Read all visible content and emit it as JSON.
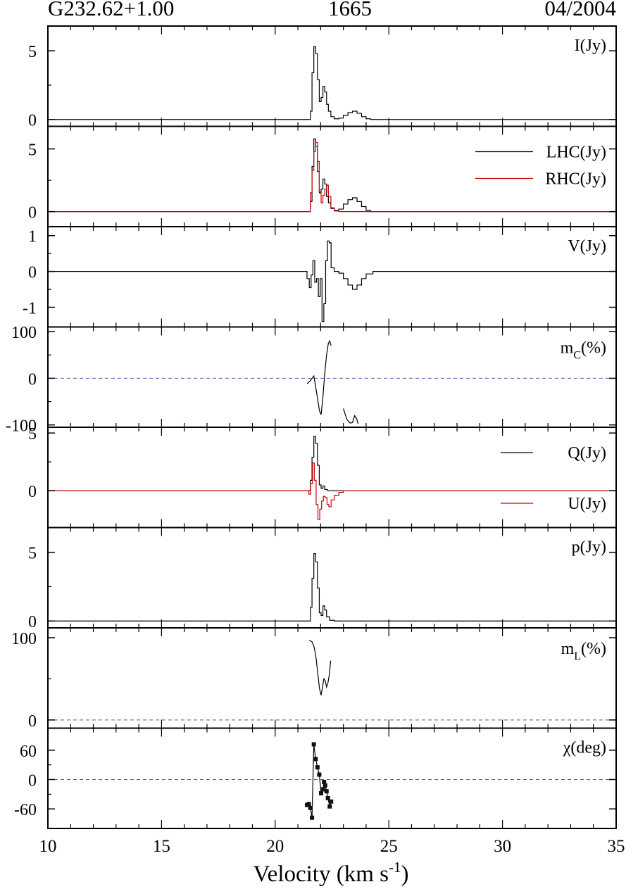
{
  "header": {
    "source": "G232.62+1.00",
    "frequency": "1665",
    "date": "04/2004"
  },
  "chart_data": {
    "type": "line",
    "xlim": [
      10,
      35
    ],
    "x_ticks": [
      10,
      15,
      20,
      25,
      30,
      35
    ],
    "xlabel": "Velocity (km s⁻¹)",
    "panels": [
      {
        "label": "I(Jy)",
        "ylim": [
          -0.5,
          6.8
        ],
        "yticks": [
          0,
          5
        ],
        "series": [
          {
            "name": "",
            "color": "#000000",
            "steps": true,
            "points": [
              [
                10,
                0
              ],
              [
                21.45,
                0
              ],
              [
                21.55,
                0.6
              ],
              [
                21.62,
                3.4
              ],
              [
                21.7,
                5.3
              ],
              [
                21.78,
                4.8
              ],
              [
                21.86,
                2.9
              ],
              [
                21.94,
                1.3
              ],
              [
                22.02,
                1.6
              ],
              [
                22.1,
                2.4
              ],
              [
                22.18,
                2.0
              ],
              [
                22.26,
                1.1
              ],
              [
                22.34,
                0.6
              ],
              [
                22.45,
                0.2
              ],
              [
                22.6,
                0.05
              ],
              [
                22.8,
                0.1
              ],
              [
                23.0,
                0.3
              ],
              [
                23.2,
                0.5
              ],
              [
                23.4,
                0.6
              ],
              [
                23.6,
                0.45
              ],
              [
                23.8,
                0.2
              ],
              [
                24.0,
                0.05
              ],
              [
                24.2,
                0
              ],
              [
                35,
                0
              ]
            ]
          }
        ]
      },
      {
        "label": "",
        "ylim": [
          -1.2,
          6.8
        ],
        "yticks": [
          0,
          5
        ],
        "legend": [
          {
            "name": "LHC(Jy)",
            "color": "#000000"
          },
          {
            "name": "RHC(Jy)",
            "color": "#cc0000"
          }
        ],
        "series": [
          {
            "name": "LHC(Jy)",
            "color": "#000000",
            "steps": true,
            "points": [
              [
                10,
                0
              ],
              [
                21.45,
                0
              ],
              [
                21.55,
                0.8
              ],
              [
                21.62,
                3.6
              ],
              [
                21.7,
                5.8
              ],
              [
                21.78,
                5.2
              ],
              [
                21.86,
                3.2
              ],
              [
                21.94,
                1.5
              ],
              [
                22.02,
                1.8
              ],
              [
                22.1,
                2.6
              ],
              [
                22.18,
                2.2
              ],
              [
                22.26,
                1.2
              ],
              [
                22.34,
                0.7
              ],
              [
                22.45,
                0.25
              ],
              [
                22.6,
                0.1
              ],
              [
                22.8,
                0.2
              ],
              [
                23.0,
                0.6
              ],
              [
                23.2,
                0.95
              ],
              [
                23.4,
                1.1
              ],
              [
                23.6,
                0.8
              ],
              [
                23.8,
                0.4
              ],
              [
                24.0,
                0.1
              ],
              [
                24.2,
                0
              ],
              [
                35,
                0
              ]
            ]
          },
          {
            "name": "RHC(Jy)",
            "color": "#cc0000",
            "steps": true,
            "points": [
              [
                10,
                0
              ],
              [
                21.45,
                0
              ],
              [
                21.55,
                1.5
              ],
              [
                21.62,
                3.3
              ],
              [
                21.7,
                4.8
              ],
              [
                21.78,
                5.5
              ],
              [
                21.86,
                4.0
              ],
              [
                21.94,
                1.6
              ],
              [
                22.02,
                0.7
              ],
              [
                22.1,
                1.3
              ],
              [
                22.18,
                1.8
              ],
              [
                22.26,
                2.1
              ],
              [
                22.34,
                1.2
              ],
              [
                22.45,
                0.3
              ],
              [
                22.6,
                0.05
              ],
              [
                22.8,
                0
              ],
              [
                35,
                0
              ]
            ]
          }
        ]
      },
      {
        "label": "V(Jy)",
        "ylim": [
          -1.55,
          1.25
        ],
        "yticks": [
          -1,
          0,
          1
        ],
        "ytick_labels": [
          "-1",
          "0",
          "1"
        ],
        "series": [
          {
            "name": "",
            "color": "#000000",
            "steps": true,
            "points": [
              [
                10,
                0
              ],
              [
                21.3,
                0
              ],
              [
                21.4,
                -0.2
              ],
              [
                21.5,
                -0.45
              ],
              [
                21.58,
                -0.1
              ],
              [
                21.66,
                0.3
              ],
              [
                21.74,
                -0.3
              ],
              [
                21.82,
                -0.2
              ],
              [
                21.9,
                -0.7
              ],
              [
                21.98,
                -0.2
              ],
              [
                22.06,
                -1.4
              ],
              [
                22.14,
                -0.9
              ],
              [
                22.22,
                0.3
              ],
              [
                22.3,
                0.85
              ],
              [
                22.38,
                0.8
              ],
              [
                22.46,
                0.1
              ],
              [
                22.6,
                0
              ],
              [
                22.8,
                -0.05
              ],
              [
                23.0,
                -0.2
              ],
              [
                23.2,
                -0.38
              ],
              [
                23.4,
                -0.5
              ],
              [
                23.6,
                -0.38
              ],
              [
                23.8,
                -0.2
              ],
              [
                24.0,
                -0.07
              ],
              [
                24.3,
                0
              ],
              [
                35,
                0
              ]
            ]
          }
        ]
      },
      {
        "label": "mC(%)",
        "label_main": "m",
        "label_sub": "C",
        "label_tail": "(%)",
        "ylim": [
          -105,
          110
        ],
        "yticks": [
          -100,
          0,
          100
        ],
        "zero_line": true,
        "series": [
          {
            "name": "",
            "color": "#000000",
            "steps": false,
            "points": [
              [
                21.4,
                -12
              ],
              [
                21.55,
                -5
              ],
              [
                21.7,
                5
              ],
              [
                21.82,
                -30
              ],
              [
                21.95,
                -70
              ],
              [
                22.02,
                -78
              ],
              [
                22.1,
                -40
              ],
              [
                22.18,
                10
              ],
              [
                22.26,
                50
              ],
              [
                22.34,
                75
              ],
              [
                22.4,
                80
              ],
              [
                22.46,
                70
              ]
            ]
          },
          {
            "name": "",
            "color": "#000000",
            "steps": false,
            "points": [
              [
                23.0,
                -65
              ],
              [
                23.15,
                -88
              ],
              [
                23.3,
                -96
              ],
              [
                23.4,
                -95
              ],
              [
                23.5,
                -80
              ],
              [
                23.58,
                -86
              ],
              [
                23.65,
                -98
              ]
            ]
          }
        ]
      },
      {
        "label": "",
        "ylim": [
          -3.2,
          5.5
        ],
        "yticks": [
          0,
          5
        ],
        "legend": [
          {
            "name": "Q(Jy)",
            "color": "#000000"
          },
          {
            "name": "U(Jy)",
            "color": "#cc0000"
          }
        ],
        "series": [
          {
            "name": "Q(Jy)",
            "color": "#000000",
            "steps": true,
            "points": [
              [
                10,
                0
              ],
              [
                21.45,
                0
              ],
              [
                21.55,
                0.9
              ],
              [
                21.62,
                2.9
              ],
              [
                21.7,
                4.7
              ],
              [
                21.78,
                4.1
              ],
              [
                21.86,
                2.2
              ],
              [
                21.94,
                0.5
              ],
              [
                22.02,
                0.2
              ],
              [
                22.1,
                0.4
              ],
              [
                22.18,
                0.1
              ],
              [
                22.3,
                0
              ],
              [
                35,
                0
              ]
            ]
          },
          {
            "name": "U(Jy)",
            "color": "#cc0000",
            "steps": true,
            "points": [
              [
                10,
                0
              ],
              [
                21.4,
                0
              ],
              [
                21.48,
                -0.3
              ],
              [
                21.56,
                0.6
              ],
              [
                21.64,
                2.4
              ],
              [
                21.72,
                0.9
              ],
              [
                21.8,
                -1.2
              ],
              [
                21.88,
                -2.5
              ],
              [
                21.96,
                -1.6
              ],
              [
                22.04,
                -0.9
              ],
              [
                22.12,
                -0.5
              ],
              [
                22.2,
                -0.6
              ],
              [
                22.28,
                -1.2
              ],
              [
                22.36,
                -1.4
              ],
              [
                22.46,
                -0.8
              ],
              [
                22.6,
                -0.4
              ],
              [
                22.8,
                -0.15
              ],
              [
                23.0,
                0
              ],
              [
                35,
                0
              ]
            ]
          }
        ]
      },
      {
        "label": "p(Jy)",
        "ylim": [
          -0.5,
          6.8
        ],
        "yticks": [
          0,
          5
        ],
        "series": [
          {
            "name": "",
            "color": "#000000",
            "steps": true,
            "points": [
              [
                10,
                0
              ],
              [
                21.45,
                0
              ],
              [
                21.55,
                1.0
              ],
              [
                21.62,
                3.1
              ],
              [
                21.7,
                4.9
              ],
              [
                21.78,
                4.3
              ],
              [
                21.86,
                2.4
              ],
              [
                21.94,
                0.6
              ],
              [
                22.02,
                0.4
              ],
              [
                22.1,
                1.1
              ],
              [
                22.18,
                0.8
              ],
              [
                22.26,
                0.3
              ],
              [
                22.4,
                0.05
              ],
              [
                22.6,
                0
              ],
              [
                35,
                0
              ]
            ]
          }
        ]
      },
      {
        "label": "mL(%)",
        "label_main": "m",
        "label_sub": "L",
        "label_tail": "(%)",
        "ylim": [
          -10,
          112
        ],
        "yticks": [
          0,
          100
        ],
        "zero_line": true,
        "series": [
          {
            "name": "",
            "color": "#000000",
            "steps": false,
            "points": [
              [
                21.5,
                97
              ],
              [
                21.62,
                95
              ],
              [
                21.72,
                88
              ],
              [
                21.8,
                75
              ],
              [
                21.88,
                55
              ],
              [
                21.95,
                38
              ],
              [
                22.02,
                30
              ],
              [
                22.08,
                40
              ],
              [
                22.14,
                50
              ],
              [
                22.2,
                48
              ],
              [
                22.26,
                40
              ],
              [
                22.32,
                45
              ],
              [
                22.38,
                55
              ],
              [
                22.44,
                72
              ]
            ]
          }
        ]
      },
      {
        "label": "χ(deg)",
        "ylim": [
          -100,
          105
        ],
        "yticks": [
          -60,
          0,
          60
        ],
        "zero_line": true,
        "series": [
          {
            "name": "",
            "color": "#000000",
            "steps": false,
            "markers": true,
            "points": [
              [
                21.4,
                -52
              ],
              [
                21.48,
                -50
              ],
              [
                21.55,
                -58
              ],
              [
                21.62,
                -78
              ],
              [
                21.7,
                72
              ],
              [
                21.78,
                42
              ],
              [
                21.86,
                25
              ],
              [
                21.94,
                10
              ],
              [
                22.02,
                -28
              ],
              [
                22.1,
                -20
              ],
              [
                22.15,
                -5
              ],
              [
                22.2,
                -12
              ],
              [
                22.26,
                -24
              ],
              [
                22.32,
                -38
              ],
              [
                22.4,
                -55
              ],
              [
                22.46,
                -45
              ]
            ]
          }
        ]
      }
    ]
  }
}
